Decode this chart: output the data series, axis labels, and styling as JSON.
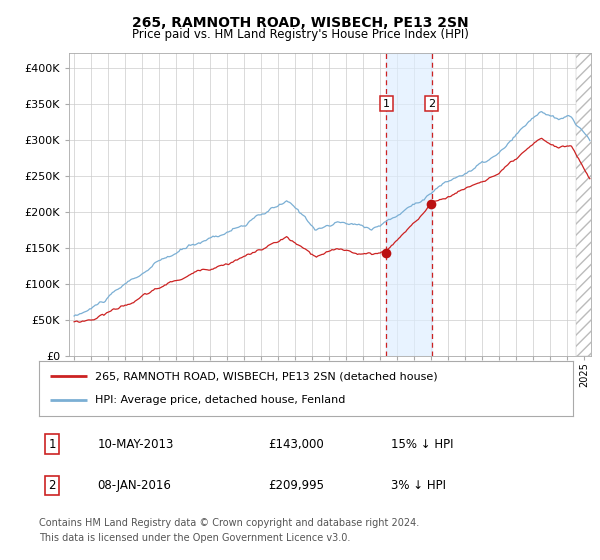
{
  "title": "265, RAMNOTH ROAD, WISBECH, PE13 2SN",
  "subtitle": "Price paid vs. HM Land Registry's House Price Index (HPI)",
  "legend_line1": "265, RAMNOTH ROAD, WISBECH, PE13 2SN (detached house)",
  "legend_line2": "HPI: Average price, detached house, Fenland",
  "transaction1_date": "10-MAY-2013",
  "transaction1_price": 143000,
  "transaction1_label": "15% ↓ HPI",
  "transaction2_date": "08-JAN-2016",
  "transaction2_price": 209995,
  "transaction2_label": "3% ↓ HPI",
  "footnote1": "Contains HM Land Registry data © Crown copyright and database right 2024.",
  "footnote2": "This data is licensed under the Open Government Licence v3.0.",
  "hpi_color": "#7bafd4",
  "price_color": "#cc2222",
  "background_color": "#ffffff",
  "plot_bg_color": "#ffffff",
  "grid_color": "#cccccc",
  "hatch_color": "#bbbbbb",
  "ylim": [
    0,
    420000
  ],
  "xlim_start": 1994.7,
  "xlim_end": 2025.4,
  "transaction1_x": 2013.36,
  "transaction2_x": 2016.03
}
